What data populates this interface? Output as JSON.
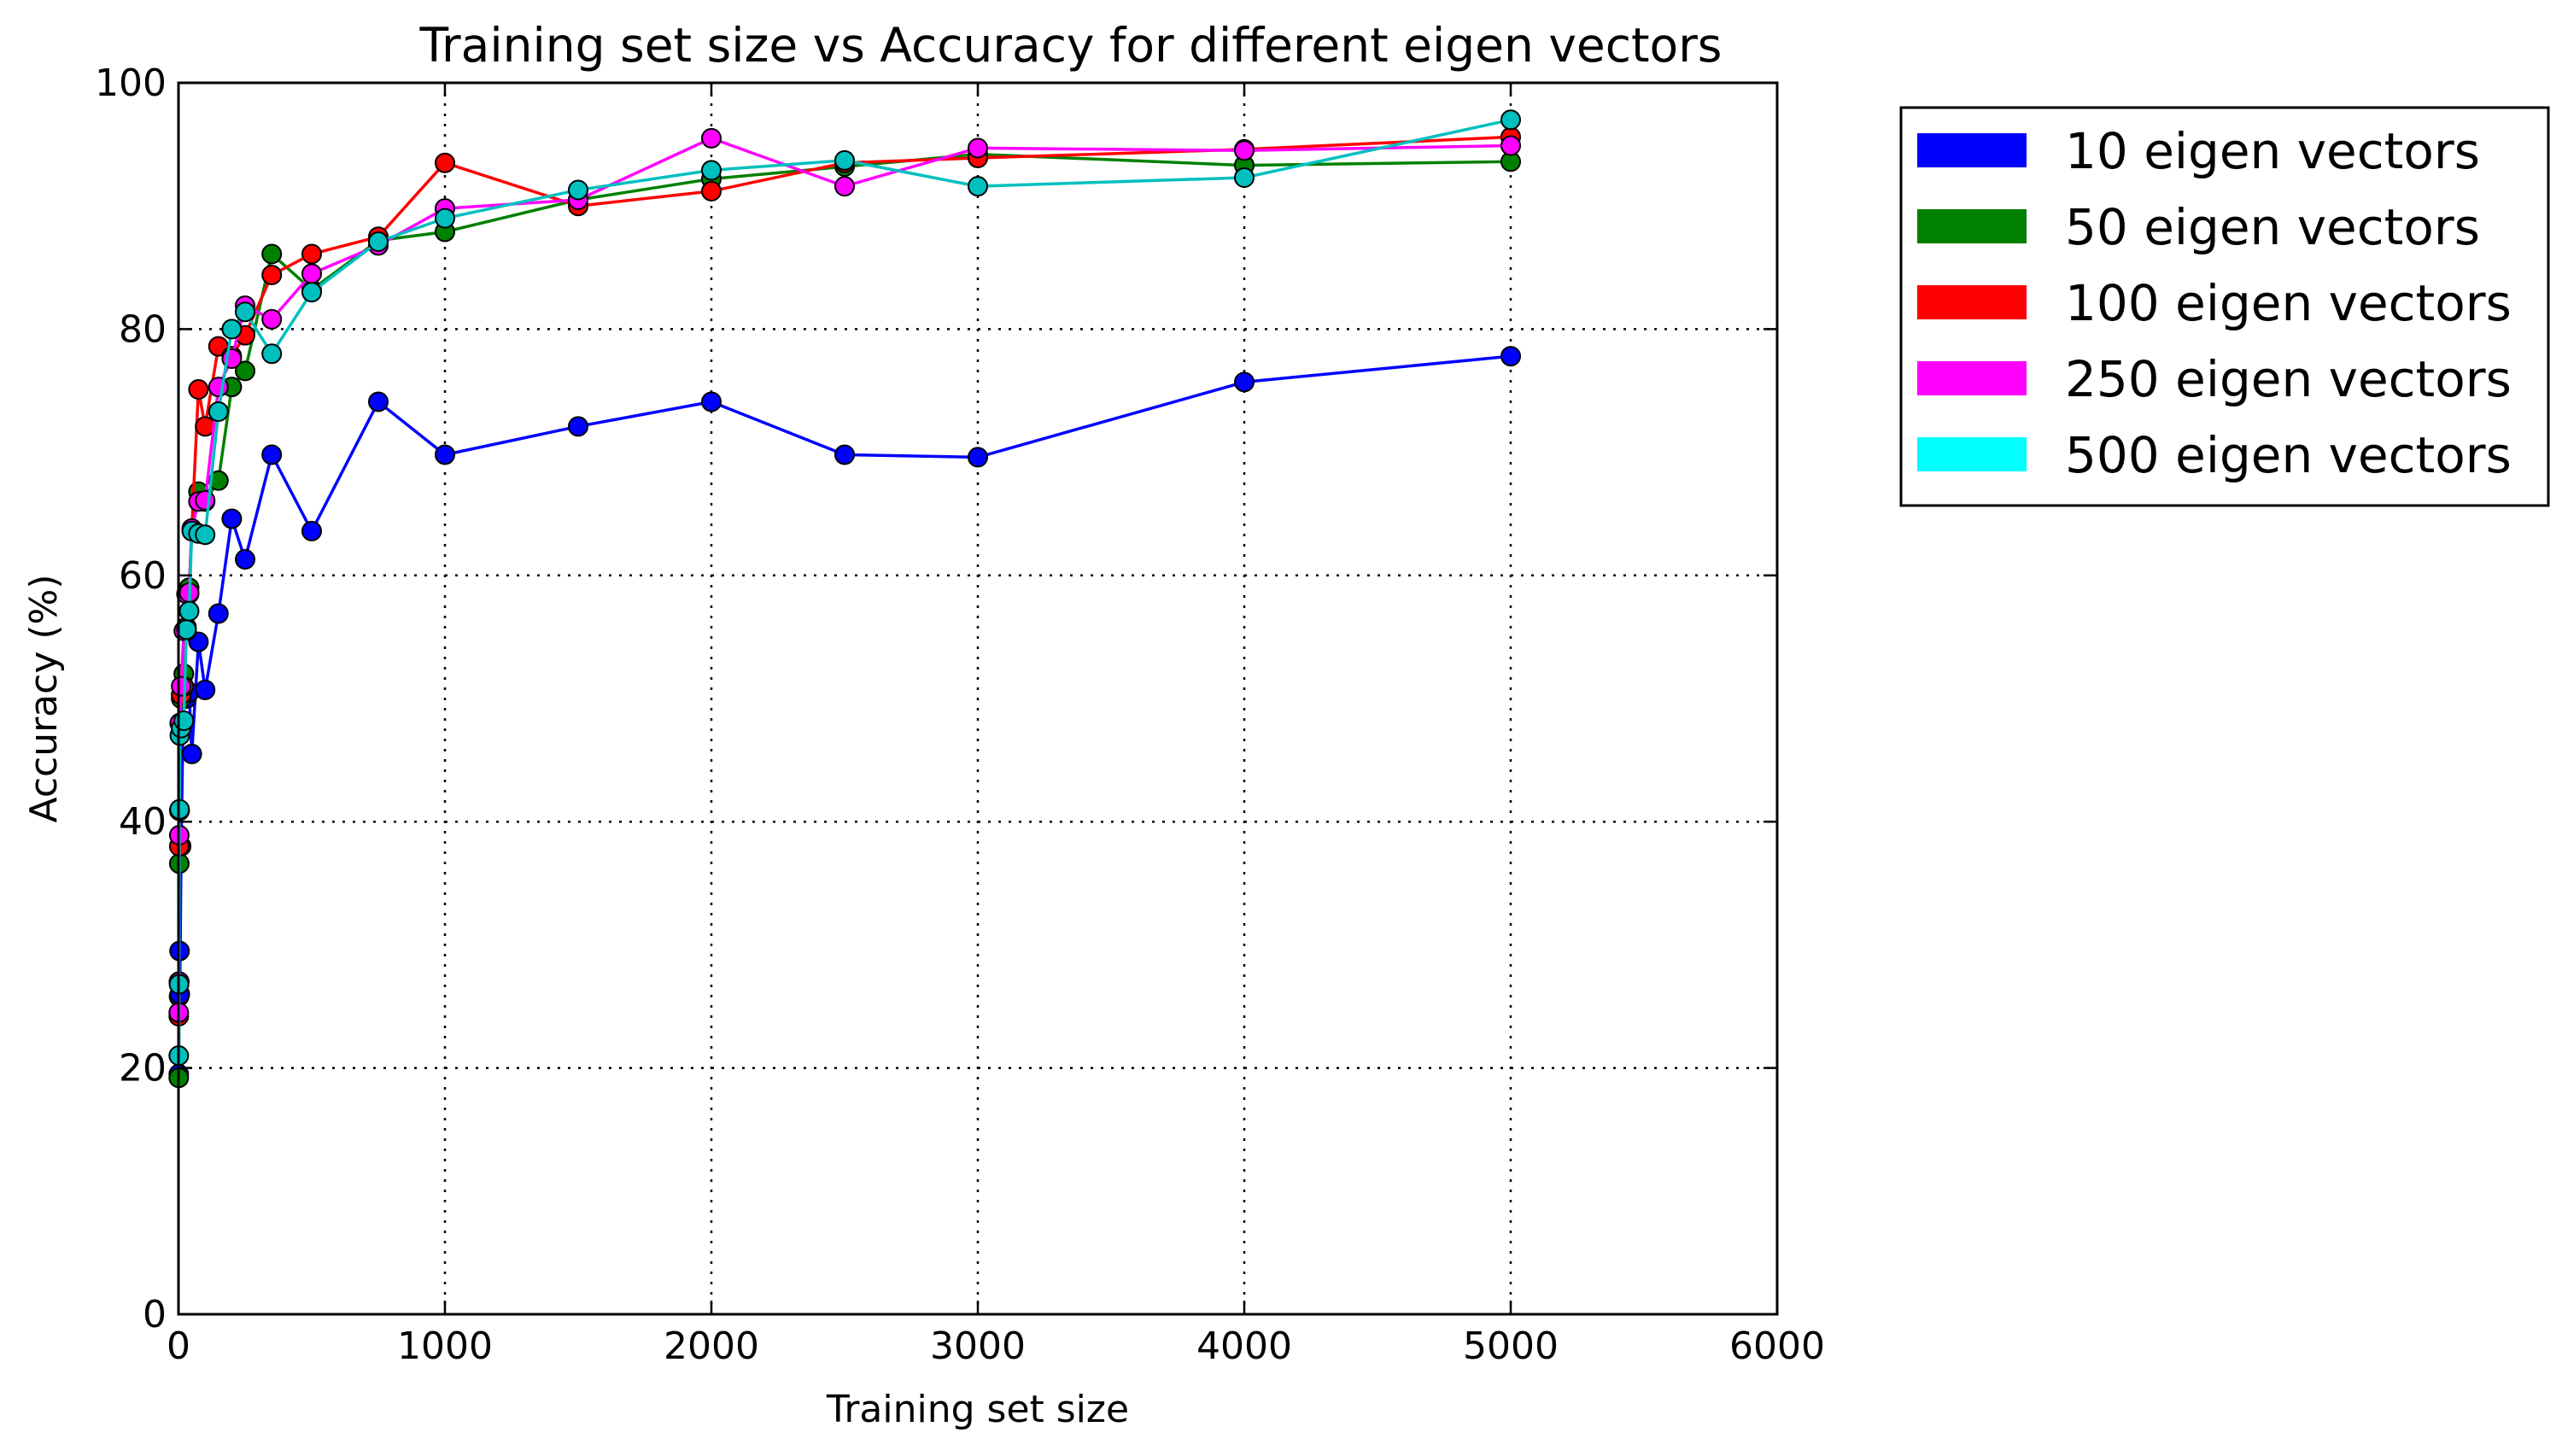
{
  "chart_data": {
    "type": "line",
    "title": "Training set size vs Accuracy for different eigen vectors",
    "xlabel": "Training set size",
    "ylabel": "Accuracy (%)",
    "xlim": [
      0,
      6000
    ],
    "ylim": [
      0,
      100
    ],
    "xticks": [
      0,
      1000,
      2000,
      3000,
      4000,
      5000,
      6000
    ],
    "yticks": [
      0,
      20,
      40,
      60,
      80,
      100
    ],
    "grid": true,
    "legend_position": "outside-right",
    "x": [
      1,
      2,
      3,
      4,
      5,
      10,
      20,
      30,
      40,
      50,
      75,
      100,
      150,
      200,
      250,
      350,
      500,
      750,
      1000,
      1500,
      2000,
      2500,
      3000,
      4000,
      5000
    ],
    "series": [
      {
        "name": "10 eigen vectors",
        "color": "#0000ff",
        "values": [
          19.5,
          25.8,
          27.0,
          29.5,
          26.0,
          38.0,
          52.0,
          50.0,
          50.5,
          45.5,
          54.6,
          50.7,
          56.9,
          64.6,
          61.3,
          69.8,
          63.6,
          74.1,
          69.8,
          72.1,
          74.1,
          69.8,
          69.6,
          75.7,
          77.8
        ]
      },
      {
        "name": "50 eigen vectors",
        "color": "#008000",
        "values": [
          19.2,
          27.0,
          36.6,
          40.9,
          48.0,
          50.0,
          52.0,
          55.8,
          59.0,
          63.6,
          66.8,
          66.0,
          67.7,
          75.3,
          76.6,
          86.1,
          83.2,
          87.2,
          87.9,
          90.5,
          92.2,
          93.2,
          94.2,
          93.3,
          93.6
        ]
      },
      {
        "name": "100 eigen vectors",
        "color": "#ff0000",
        "values": [
          24.2,
          27.0,
          38.0,
          40.9,
          48.0,
          50.3,
          51.0,
          55.5,
          58.5,
          63.8,
          75.1,
          72.1,
          78.6,
          77.8,
          79.5,
          84.4,
          86.1,
          87.5,
          93.5,
          90.0,
          91.2,
          93.5,
          93.9,
          94.6,
          95.6
        ]
      },
      {
        "name": "250 eigen vectors",
        "color": "#ff00ff",
        "values": [
          24.5,
          27.0,
          38.9,
          40.9,
          48.0,
          51.0,
          55.5,
          58.5,
          58.6,
          63.8,
          66.0,
          66.1,
          75.3,
          77.6,
          81.9,
          80.8,
          84.5,
          86.8,
          89.8,
          90.5,
          95.5,
          91.6,
          94.7,
          94.5,
          94.9
        ]
      },
      {
        "name": "500 eigen vectors",
        "color": "#00bfbf",
        "legend_color": "#00ffff",
        "values": [
          21.0,
          26.8,
          40.9,
          41.0,
          47.0,
          47.6,
          48.2,
          55.6,
          57.1,
          63.6,
          63.4,
          63.3,
          73.3,
          80.0,
          81.4,
          78.0,
          83.0,
          87.1,
          89.0,
          91.3,
          92.9,
          93.7,
          91.6,
          92.3,
          97.0
        ]
      }
    ]
  }
}
